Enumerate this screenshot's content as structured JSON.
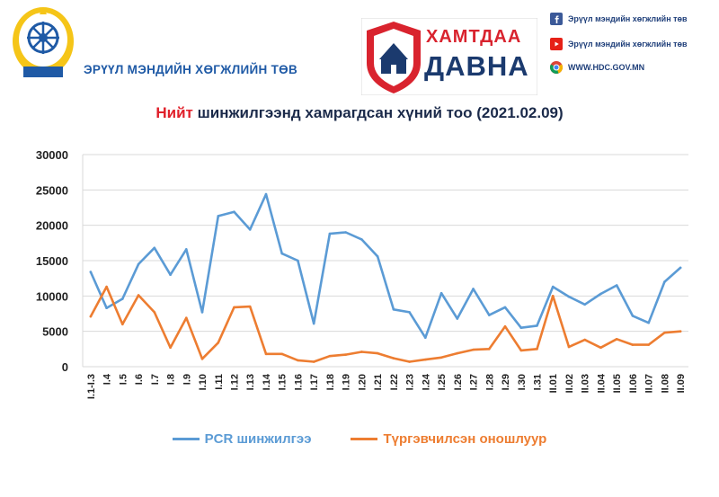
{
  "header": {
    "org_name": "ЭРҮҮЛ МЭНДИЙН ХӨГЖЛИЙН ТӨВ",
    "campaign_line1": "ХАМТДАА",
    "campaign_line2": "ДАВНА",
    "contacts": [
      {
        "icon": "facebook-icon",
        "text": "Эрүүл мэндийн хөгжлийн төв"
      },
      {
        "icon": "youtube-icon",
        "text": "Эрүүл мэндийн хөгжлийн төв"
      },
      {
        "icon": "chrome-icon",
        "text": "WWW.HDC.GOV.MN"
      }
    ]
  },
  "colors": {
    "pcr": "#5b9bd5",
    "rapid": "#ed7d31",
    "accent": "#e0202a",
    "brand": "#1f5aa6"
  },
  "chart_data": {
    "type": "line",
    "title_accent": "Нийт",
    "title_rest": " шинжилгээнд хамрагдсан хүний тоо (2021.02.09)",
    "categories": [
      "I.1-I.3",
      "I.4",
      "I.5",
      "I.6",
      "I.7",
      "I.8",
      "I.9",
      "I.10",
      "I.11",
      "I.12",
      "I.13",
      "I.14",
      "I.15",
      "I.16",
      "I.17",
      "I.18",
      "I.19",
      "I.20",
      "I.21",
      "I.22",
      "I.23",
      "I.24",
      "I.25",
      "I.26",
      "I.27",
      "I.28",
      "I.29",
      "I.30",
      "I.31",
      "II.01",
      "II.02",
      "II.03",
      "II.04",
      "II.05",
      "II.06",
      "II.07",
      "II.08",
      "II.09"
    ],
    "series": [
      {
        "name": "PCR шинжилгээ",
        "color": "#5b9bd5",
        "values": [
          13400,
          8300,
          9600,
          14500,
          16800,
          13000,
          16600,
          7700,
          21300,
          21900,
          19400,
          24400,
          16000,
          15000,
          6100,
          18800,
          19000,
          18000,
          15600,
          8100,
          7700,
          4100,
          10400,
          6800,
          11000,
          7300,
          8400,
          5500,
          5800,
          11300,
          9900,
          8800,
          10300,
          11500,
          7200,
          6200,
          12000,
          14000
        ]
      },
      {
        "name": "Түргэвчилсэн оношлуур",
        "color": "#ed7d31",
        "values": [
          7100,
          11300,
          6000,
          10100,
          7700,
          2700,
          6900,
          1100,
          3400,
          8400,
          8500,
          1800,
          1800,
          900,
          700,
          1500,
          1700,
          2100,
          1900,
          1200,
          700,
          1000,
          1300,
          1900,
          2400,
          2500,
          5700,
          2300,
          2500,
          10000,
          2800,
          3800,
          2700,
          3900,
          3100,
          3100,
          4800,
          5000
        ]
      }
    ],
    "ylim": [
      0,
      30000
    ],
    "yticks": [
      0,
      5000,
      10000,
      15000,
      20000,
      25000,
      30000
    ],
    "grid": true,
    "legend_position": "bottom"
  }
}
